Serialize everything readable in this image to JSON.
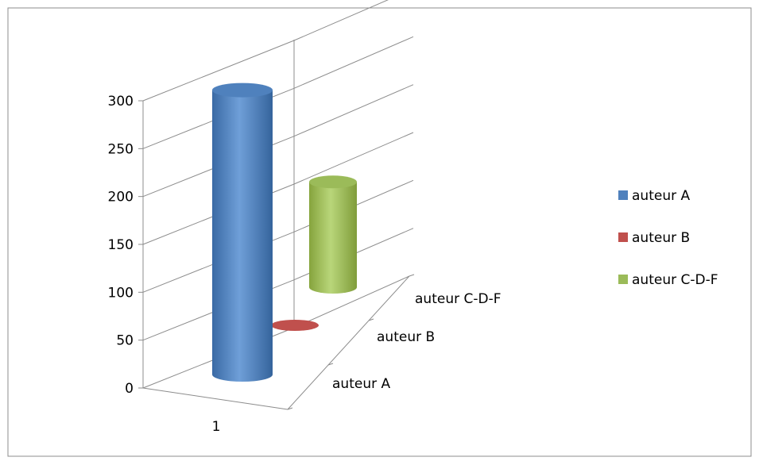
{
  "chart_data": {
    "type": "bar",
    "style": "3d-cylinder",
    "x_categories": [
      "1"
    ],
    "depth_categories": [
      "auteur A",
      "auteur B",
      "auteur C-D-F"
    ],
    "series": [
      {
        "name": "auteur A",
        "values": [
          297
        ],
        "color": "#4F81BD"
      },
      {
        "name": "auteur B",
        "values": [
          0
        ],
        "color": "#C0504D"
      },
      {
        "name": "auteur C-D-F",
        "values": [
          110
        ],
        "color": "#9BBB59"
      }
    ],
    "y_ticks": [
      "0",
      "50",
      "100",
      "150",
      "200",
      "250",
      "300"
    ],
    "ylim": [
      0,
      300
    ],
    "grid": true,
    "legend_position": "right"
  }
}
